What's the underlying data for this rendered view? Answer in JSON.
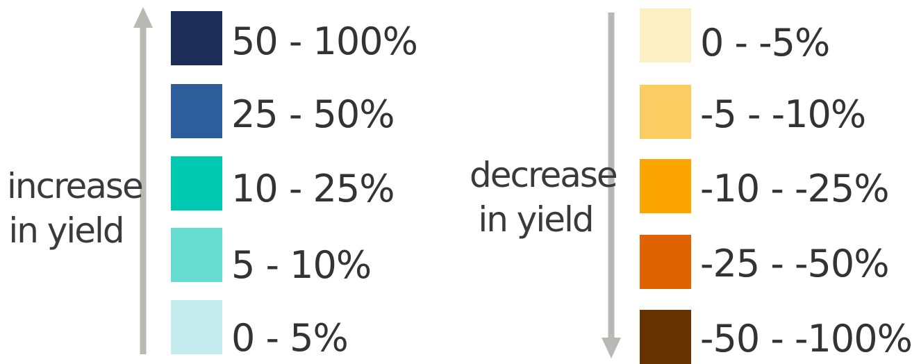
{
  "increase": {
    "label_lines": [
      "increase",
      "in yield"
    ],
    "arrow_direction": "up",
    "arrow_color": "#b9b9b3",
    "items": [
      {
        "label": "50 - 100%",
        "color": "#1c2d57"
      },
      {
        "label": "25 - 50%",
        "color": "#2d5d9b"
      },
      {
        "label": "10 - 25%",
        "color": "#00c9b1"
      },
      {
        "label": "5 - 10%",
        "color": "#66ddd0"
      },
      {
        "label": "0 - 5%",
        "color": "#c4ecee"
      }
    ]
  },
  "decrease": {
    "label_lines": [
      "decrease",
      "in yield"
    ],
    "arrow_direction": "down",
    "arrow_color": "#b9b9b3",
    "items": [
      {
        "label": "0 - -5%",
        "color": "#fcefc4"
      },
      {
        "label": "-5 - -10%",
        "color": "#f9cd61"
      },
      {
        "label": "-10 - -25%",
        "color": "#fca500"
      },
      {
        "label": "-25 - -50%",
        "color": "#e06303"
      },
      {
        "label": "-50 - -100%",
        "color": "#663200"
      }
    ]
  }
}
